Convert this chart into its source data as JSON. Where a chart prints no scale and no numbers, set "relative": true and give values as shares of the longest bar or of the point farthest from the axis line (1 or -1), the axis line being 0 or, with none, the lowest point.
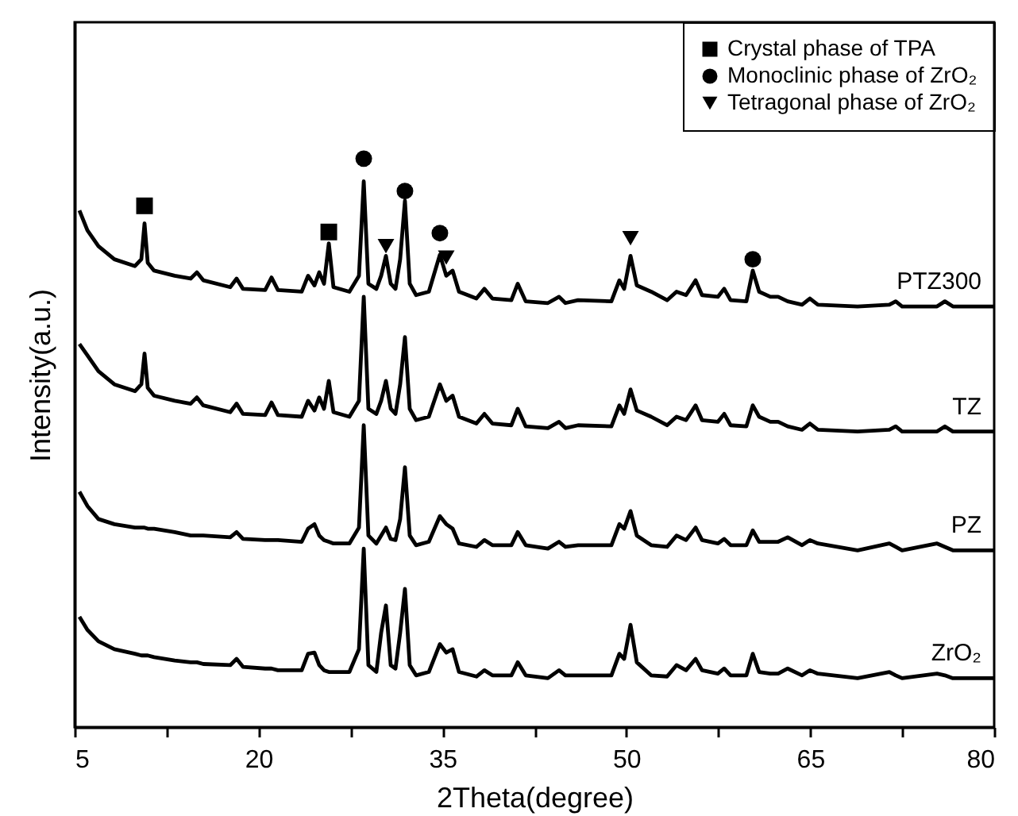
{
  "chart_data": {
    "type": "line",
    "relative": true,
    "xlabel": "2Theta(degree)",
    "ylabel": "Intensity(a.u.)",
    "xlim": [
      5,
      80
    ],
    "xticks": [
      5,
      {
        "value": 12.5,
        "label": null
      },
      20,
      {
        "value": 27.5,
        "label": null
      },
      35,
      {
        "value": 42.5,
        "label": null
      },
      50,
      {
        "value": 57.5,
        "label": null
      },
      65,
      {
        "value": 72.5,
        "label": null
      },
      80
    ],
    "tick_labels": "x",
    "grid": false,
    "legend": "top right",
    "line_style": "solid",
    "x": [
      5.39,
      6.04,
      6.94,
      8.24,
      9.92,
      10.44,
      10.7,
      10.96,
      11.48,
      13.16,
      14.46,
      14.97,
      15.49,
      17.69,
      18.21,
      18.73,
      20.54,
      21.06,
      21.58,
      23.52,
      24.04,
      24.56,
      24.95,
      25.34,
      25.73,
      26.11,
      27.41,
      28.19,
      28.58,
      28.96,
      29.61,
      30.0,
      30.39,
      30.78,
      31.17,
      31.55,
      31.94,
      32.33,
      32.85,
      33.89,
      34.79,
      35.31,
      35.83,
      36.35,
      37.77,
      38.42,
      39.07,
      40.62,
      41.14,
      41.79,
      43.6,
      44.51,
      45.03,
      46.06,
      48.78,
      49.43,
      49.82,
      50.34,
      50.85,
      52.02,
      53.32,
      54.09,
      54.87,
      55.65,
      56.17,
      57.46,
      57.98,
      58.5,
      59.79,
      60.31,
      60.83,
      61.74,
      62.38,
      63.16,
      64.33,
      64.97,
      65.62,
      68.86,
      71.45,
      71.97,
      72.49,
      75.34,
      75.98,
      76.63,
      80
    ],
    "series": [
      {
        "name": "PTZ300",
        "color": "#000000",
        "values": [
          0.909,
          0.874,
          0.846,
          0.823,
          0.811,
          0.823,
          0.886,
          0.817,
          0.803,
          0.794,
          0.789,
          0.8,
          0.786,
          0.774,
          0.789,
          0.771,
          0.769,
          0.791,
          0.769,
          0.766,
          0.794,
          0.777,
          0.8,
          0.78,
          0.851,
          0.774,
          0.766,
          0.794,
          0.96,
          0.78,
          0.771,
          0.794,
          0.829,
          0.78,
          0.771,
          0.823,
          0.926,
          0.78,
          0.76,
          0.766,
          0.831,
          0.794,
          0.803,
          0.766,
          0.754,
          0.771,
          0.754,
          0.751,
          0.78,
          0.749,
          0.746,
          0.757,
          0.746,
          0.751,
          0.749,
          0.786,
          0.771,
          0.829,
          0.777,
          0.766,
          0.751,
          0.766,
          0.76,
          0.786,
          0.76,
          0.757,
          0.771,
          0.751,
          0.749,
          0.803,
          0.766,
          0.757,
          0.757,
          0.749,
          0.743,
          0.754,
          0.743,
          0.74,
          0.743,
          0.749,
          0.74,
          0.74,
          0.749,
          0.74,
          0.74
        ]
      },
      {
        "name": "TZ",
        "color": "#000000",
        "values": [
          0.674,
          0.654,
          0.626,
          0.603,
          0.591,
          0.603,
          0.657,
          0.597,
          0.583,
          0.574,
          0.569,
          0.58,
          0.566,
          0.554,
          0.569,
          0.551,
          0.549,
          0.571,
          0.549,
          0.546,
          0.574,
          0.557,
          0.58,
          0.56,
          0.609,
          0.554,
          0.546,
          0.574,
          0.757,
          0.56,
          0.551,
          0.574,
          0.609,
          0.56,
          0.551,
          0.603,
          0.686,
          0.56,
          0.54,
          0.546,
          0.603,
          0.574,
          0.583,
          0.546,
          0.534,
          0.551,
          0.534,
          0.531,
          0.56,
          0.529,
          0.526,
          0.537,
          0.526,
          0.531,
          0.529,
          0.566,
          0.551,
          0.594,
          0.557,
          0.546,
          0.531,
          0.546,
          0.54,
          0.566,
          0.54,
          0.537,
          0.551,
          0.531,
          0.529,
          0.566,
          0.546,
          0.537,
          0.537,
          0.529,
          0.523,
          0.534,
          0.523,
          0.52,
          0.523,
          0.529,
          0.52,
          0.52,
          0.529,
          0.52,
          0.52
        ]
      },
      {
        "name": "PZ",
        "color": "#000000",
        "values": [
          0.414,
          0.389,
          0.366,
          0.357,
          0.351,
          0.351,
          0.351,
          0.349,
          0.349,
          0.343,
          0.337,
          0.337,
          0.337,
          0.334,
          0.343,
          0.331,
          0.329,
          0.329,
          0.329,
          0.326,
          0.349,
          0.357,
          0.337,
          0.329,
          0.326,
          0.323,
          0.323,
          0.351,
          0.531,
          0.337,
          0.323,
          0.337,
          0.351,
          0.331,
          0.329,
          0.366,
          0.457,
          0.337,
          0.32,
          0.326,
          0.371,
          0.357,
          0.349,
          0.323,
          0.317,
          0.329,
          0.32,
          0.32,
          0.343,
          0.32,
          0.314,
          0.326,
          0.317,
          0.32,
          0.32,
          0.357,
          0.349,
          0.38,
          0.337,
          0.32,
          0.317,
          0.337,
          0.329,
          0.351,
          0.329,
          0.323,
          0.331,
          0.32,
          0.32,
          0.346,
          0.326,
          0.326,
          0.326,
          0.334,
          0.32,
          0.329,
          0.323,
          0.311,
          0.323,
          0.317,
          0.311,
          0.323,
          0.317,
          0.311,
          0.311
        ]
      },
      {
        "name": "ZrO₂",
        "color": "#000000",
        "values": [
          0.194,
          0.171,
          0.151,
          0.137,
          0.129,
          0.126,
          0.126,
          0.126,
          0.123,
          0.117,
          0.114,
          0.114,
          0.111,
          0.109,
          0.12,
          0.106,
          0.103,
          0.103,
          0.1,
          0.1,
          0.129,
          0.131,
          0.109,
          0.1,
          0.097,
          0.097,
          0.097,
          0.137,
          0.314,
          0.109,
          0.097,
          0.166,
          0.214,
          0.109,
          0.103,
          0.166,
          0.243,
          0.109,
          0.091,
          0.097,
          0.146,
          0.131,
          0.137,
          0.097,
          0.089,
          0.1,
          0.091,
          0.091,
          0.114,
          0.091,
          0.086,
          0.1,
          0.091,
          0.091,
          0.091,
          0.129,
          0.12,
          0.18,
          0.114,
          0.091,
          0.089,
          0.109,
          0.1,
          0.12,
          0.1,
          0.094,
          0.103,
          0.091,
          0.091,
          0.129,
          0.097,
          0.094,
          0.094,
          0.103,
          0.091,
          0.1,
          0.094,
          0.086,
          0.097,
          0.091,
          0.086,
          0.094,
          0.091,
          0.086,
          0.086
        ]
      },
      {
        "name": "Crystal phase of TPA",
        "type": "scatter",
        "marker": "square",
        "color": "#000000",
        "x": [
          10.7,
          25.73
        ],
        "values": [
          0.917,
          0.871
        ]
      },
      {
        "name": "Monoclinic phase of ZrO₂",
        "type": "scatter",
        "marker": "circle",
        "color": "#000000",
        "x": [
          28.58,
          31.94,
          34.79,
          60.31
        ],
        "values": [
          1,
          0.943,
          0.869,
          0.823
        ]
      },
      {
        "name": "Tetragonal phase of ZrO₂",
        "type": "scatter",
        "marker": "triangle",
        "color": "#000000",
        "x": [
          30.39,
          35.31,
          50.34
        ],
        "values": [
          0.846,
          0.826,
          0.86
        ]
      }
    ]
  }
}
